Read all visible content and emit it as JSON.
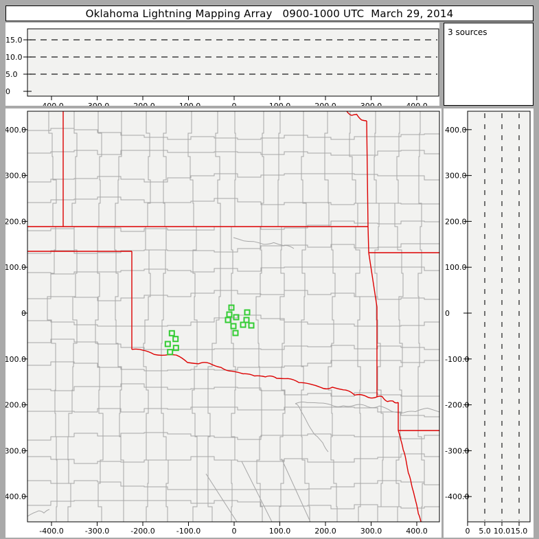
{
  "title": "Oklahoma Lightning Mapping Array   0900-1000 UTC  March 29, 2014",
  "sources_label": "3 sources",
  "colors": {
    "frame_bg": "#a9a9a9",
    "panel_bg": "#ffffff",
    "plot_bg": "#f2f2f0",
    "axis": "#000000",
    "grid_dash": "#1a1a1a",
    "county_line": "#a6a6a6",
    "state_border": "#dd0000",
    "station_marker": "#33cc33"
  },
  "axes": {
    "km_ticks": {
      "values": [
        -400,
        -300,
        -200,
        -100,
        0,
        100,
        200,
        300,
        400
      ],
      "labels": [
        "-400.0",
        "-300.0",
        "-200.0",
        "-100.0",
        "0",
        "100.0",
        "200.0",
        "300.0",
        "400.0"
      ]
    },
    "alt_ticks": {
      "values": [
        0,
        5,
        10,
        15
      ],
      "labels": [
        "0",
        "5.0",
        "10.0",
        "15.0"
      ]
    },
    "alt_grid_values": [
      5,
      10,
      15
    ]
  },
  "stations": [
    {
      "x_km": -6.0,
      "y_km": 12.0
    },
    {
      "x_km": -10.5,
      "y_km": -3.0
    },
    {
      "x_km": -13.5,
      "y_km": -15.0
    },
    {
      "x_km": 4.5,
      "y_km": -9.0
    },
    {
      "x_km": -1.5,
      "y_km": -28.4
    },
    {
      "x_km": 3.0,
      "y_km": -43.4
    },
    {
      "x_km": 19.5,
      "y_km": -25.4
    },
    {
      "x_km": 28.6,
      "y_km": 1.5
    },
    {
      "x_km": 27.1,
      "y_km": -15.0
    },
    {
      "x_km": 37.6,
      "y_km": -26.9
    },
    {
      "x_km": -136.4,
      "y_km": -43.9
    },
    {
      "x_km": -128.3,
      "y_km": -56.4
    },
    {
      "x_km": -145.4,
      "y_km": -67.4
    },
    {
      "x_km": -127.4,
      "y_km": -75.9
    },
    {
      "x_km": -140.3,
      "y_km": -84.9
    }
  ],
  "chart_data": {
    "type": "scatter",
    "title": "Oklahoma Lightning Mapping Array   0900-1000 UTC  March 29, 2014",
    "annotation": "3 sources",
    "panels": [
      {
        "id": "altitude-vs-east-west",
        "position": "top-left",
        "xlim": [
          -450,
          450
        ],
        "ylim": [
          0,
          18.5
        ],
        "x_tick_values": [
          -400,
          -300,
          -200,
          -100,
          0,
          100,
          200,
          300,
          400
        ],
        "x_tick_labels": [
          "-400.0",
          "-300.0",
          "-200.0",
          "-100.0",
          "0",
          "100.0",
          "200.0",
          "300.0",
          "400.0"
        ],
        "y_tick_values": [
          0,
          5,
          10,
          15
        ],
        "y_tick_labels": [
          "0",
          "5.0",
          "10.0",
          "15.0"
        ],
        "gridlines": "dashed horizontal at 5, 10, 15 km altitude",
        "series": []
      },
      {
        "id": "plan-view-map",
        "position": "center",
        "xlim": [
          -450,
          450
        ],
        "ylim": [
          -455,
          440
        ],
        "x_tick_values": [
          -400,
          -300,
          -200,
          -100,
          0,
          100,
          200,
          300,
          400
        ],
        "x_tick_labels": [
          "-400.0",
          "-300.0",
          "-200.0",
          "-100.0",
          "0",
          "100.0",
          "200.0",
          "300.0",
          "400.0"
        ],
        "y_tick_values": [
          -400,
          -300,
          -200,
          -100,
          0,
          100,
          200,
          300,
          400
        ],
        "y_tick_labels": [
          "-400.0",
          "-300.0",
          "-200.0",
          "-100.0",
          "0",
          "100.0",
          "200.0",
          "300.0",
          "400.0"
        ],
        "map_layers": [
          "county-boundaries-gray",
          "state-boundaries-red"
        ],
        "series": [
          {
            "name": "lma-stations",
            "marker": "open-green-square",
            "points": [
              [
                -6.0,
                12.0
              ],
              [
                -10.5,
                -3.0
              ],
              [
                -13.5,
                -15.0
              ],
              [
                4.5,
                -9.0
              ],
              [
                -1.5,
                -28.4
              ],
              [
                3.0,
                -43.4
              ],
              [
                19.5,
                -25.4
              ],
              [
                28.6,
                1.5
              ],
              [
                27.1,
                -15.0
              ],
              [
                37.6,
                -26.9
              ],
              [
                -136.4,
                -43.9
              ],
              [
                -128.3,
                -56.4
              ],
              [
                -145.4,
                -67.4
              ],
              [
                -127.4,
                -75.9
              ],
              [
                -140.3,
                -84.9
              ]
            ]
          }
        ]
      },
      {
        "id": "altitude-vs-north-south",
        "position": "right",
        "xlim": [
          0,
          18.5
        ],
        "ylim": [
          -455,
          440
        ],
        "x_tick_values": [
          0,
          5,
          10,
          15
        ],
        "x_tick_labels": [
          "0",
          "5.0",
          "10.0",
          "15.0"
        ],
        "y_tick_values": [
          -400,
          -300,
          -200,
          -100,
          0,
          100,
          200,
          300,
          400
        ],
        "y_tick_labels": [
          "-400.0",
          "-300.0",
          "-200.0",
          "-100.0",
          "0",
          "100.0",
          "200.0",
          "300.0",
          "400.0"
        ],
        "gridlines": "dashed vertical at 5, 10, 15 km altitude",
        "series": []
      }
    ]
  }
}
